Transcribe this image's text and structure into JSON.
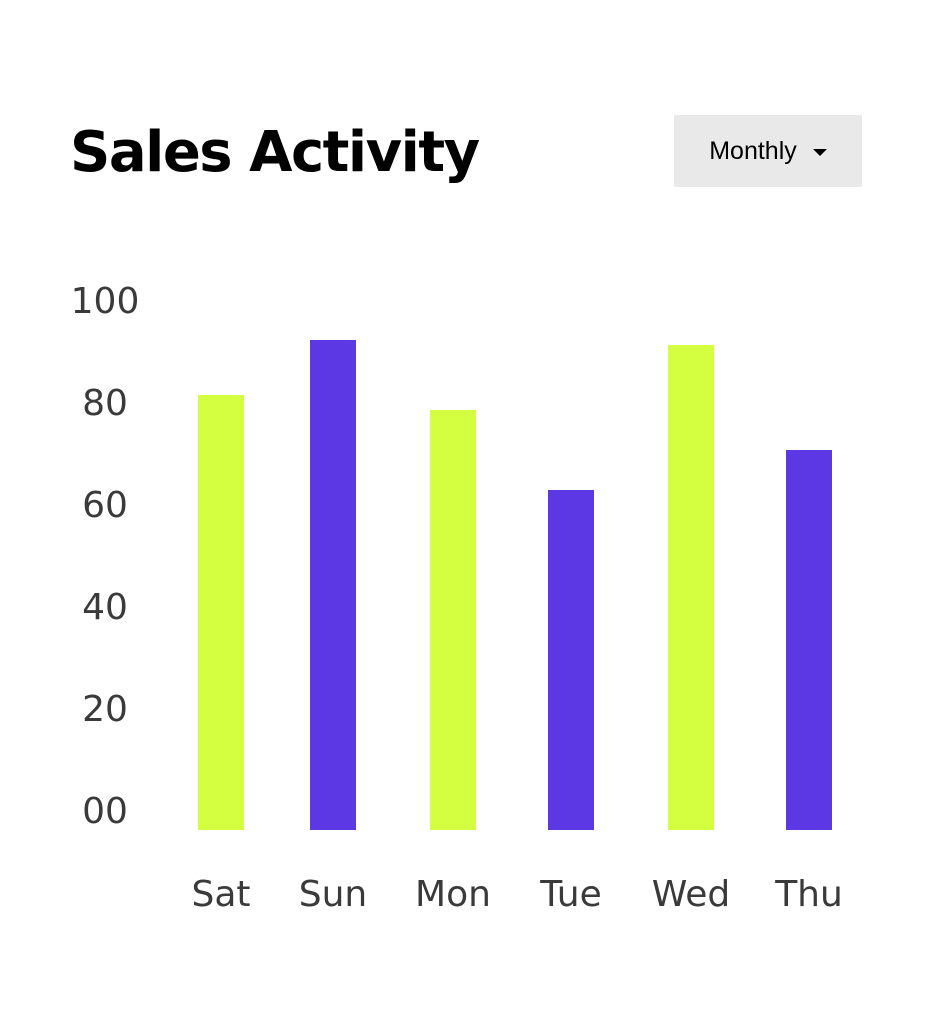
{
  "header": {
    "title": "Sales Activity",
    "period_selector": {
      "selected": "Monthly",
      "icon": "caret-down-icon"
    }
  },
  "colors": {
    "lime": "#d4ff41",
    "purple": "#5c38e5",
    "tick_text": "#3a3a3a"
  },
  "chart_data": {
    "type": "bar",
    "title": "Sales Activity",
    "xlabel": "",
    "ylabel": "",
    "categories": [
      "Sat",
      "Sun",
      "Mon",
      "Tue",
      "Wed",
      "Thu"
    ],
    "values": [
      87,
      98,
      84,
      68,
      97,
      76
    ],
    "bar_colors": [
      "#d4ff41",
      "#5c38e5",
      "#d4ff41",
      "#5c38e5",
      "#d4ff41",
      "#5c38e5"
    ],
    "ylim": [
      0,
      100
    ],
    "yticks": [
      "00",
      "20",
      "40",
      "60",
      "80",
      "100"
    ],
    "grid": false,
    "legend": "none"
  }
}
